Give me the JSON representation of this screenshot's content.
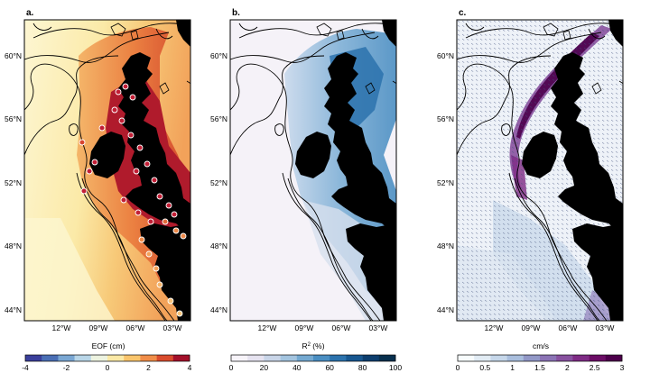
{
  "panels": [
    {
      "label": "a.",
      "lat_ticks": [
        "60°N",
        "56°N",
        "52°N",
        "48°N",
        "44°N"
      ],
      "lon_ticks": [
        "12°W",
        "09°W",
        "06°W",
        "03°W"
      ],
      "colorbar": {
        "label": "EOF (cm)",
        "ticks": [
          "-4",
          "-2",
          "0",
          "2",
          "4"
        ],
        "colors": [
          "#3a3f9b",
          "#4a6fb5",
          "#7aa7d3",
          "#b9d6e8",
          "#edf3e0",
          "#fbe9a6",
          "#f9c56c",
          "#f08d48",
          "#d94b2d",
          "#a3102a"
        ]
      }
    },
    {
      "label": "b.",
      "lat_ticks": [
        "60°N",
        "56°N",
        "52°N",
        "48°N",
        "44°N"
      ],
      "lon_ticks": [
        "12°W",
        "09°W",
        "06°W",
        "03°W"
      ],
      "colorbar": {
        "label_main": "R",
        "label_sup": "2",
        "label_rest": " (%)",
        "ticks": [
          "0",
          "20",
          "40",
          "60",
          "80",
          "100"
        ],
        "colors": [
          "#f7f4f9",
          "#e6e3f0",
          "#c9d5e8",
          "#a3c4df",
          "#74a9d1",
          "#4a8ec2",
          "#2b72ad",
          "#175790",
          "#0d3e6e",
          "#08304e"
        ]
      }
    },
    {
      "label": "c.",
      "lat_ticks": [
        "60°N",
        "56°N",
        "52°N",
        "48°N",
        "44°N"
      ],
      "lon_ticks": [
        "12°W",
        "09°W",
        "06°W",
        "03°W"
      ],
      "colorbar": {
        "label": "cm/s",
        "ticks": [
          "0",
          "0.5",
          "1",
          "1.5",
          "2",
          "2.5",
          "3"
        ],
        "colors": [
          "#f7fcfd",
          "#e2ecf4",
          "#c6d7ea",
          "#a9bedd",
          "#9298c7",
          "#8b73b5",
          "#88519f",
          "#7f2b85",
          "#6c0d66",
          "#4d004b"
        ]
      }
    }
  ]
}
